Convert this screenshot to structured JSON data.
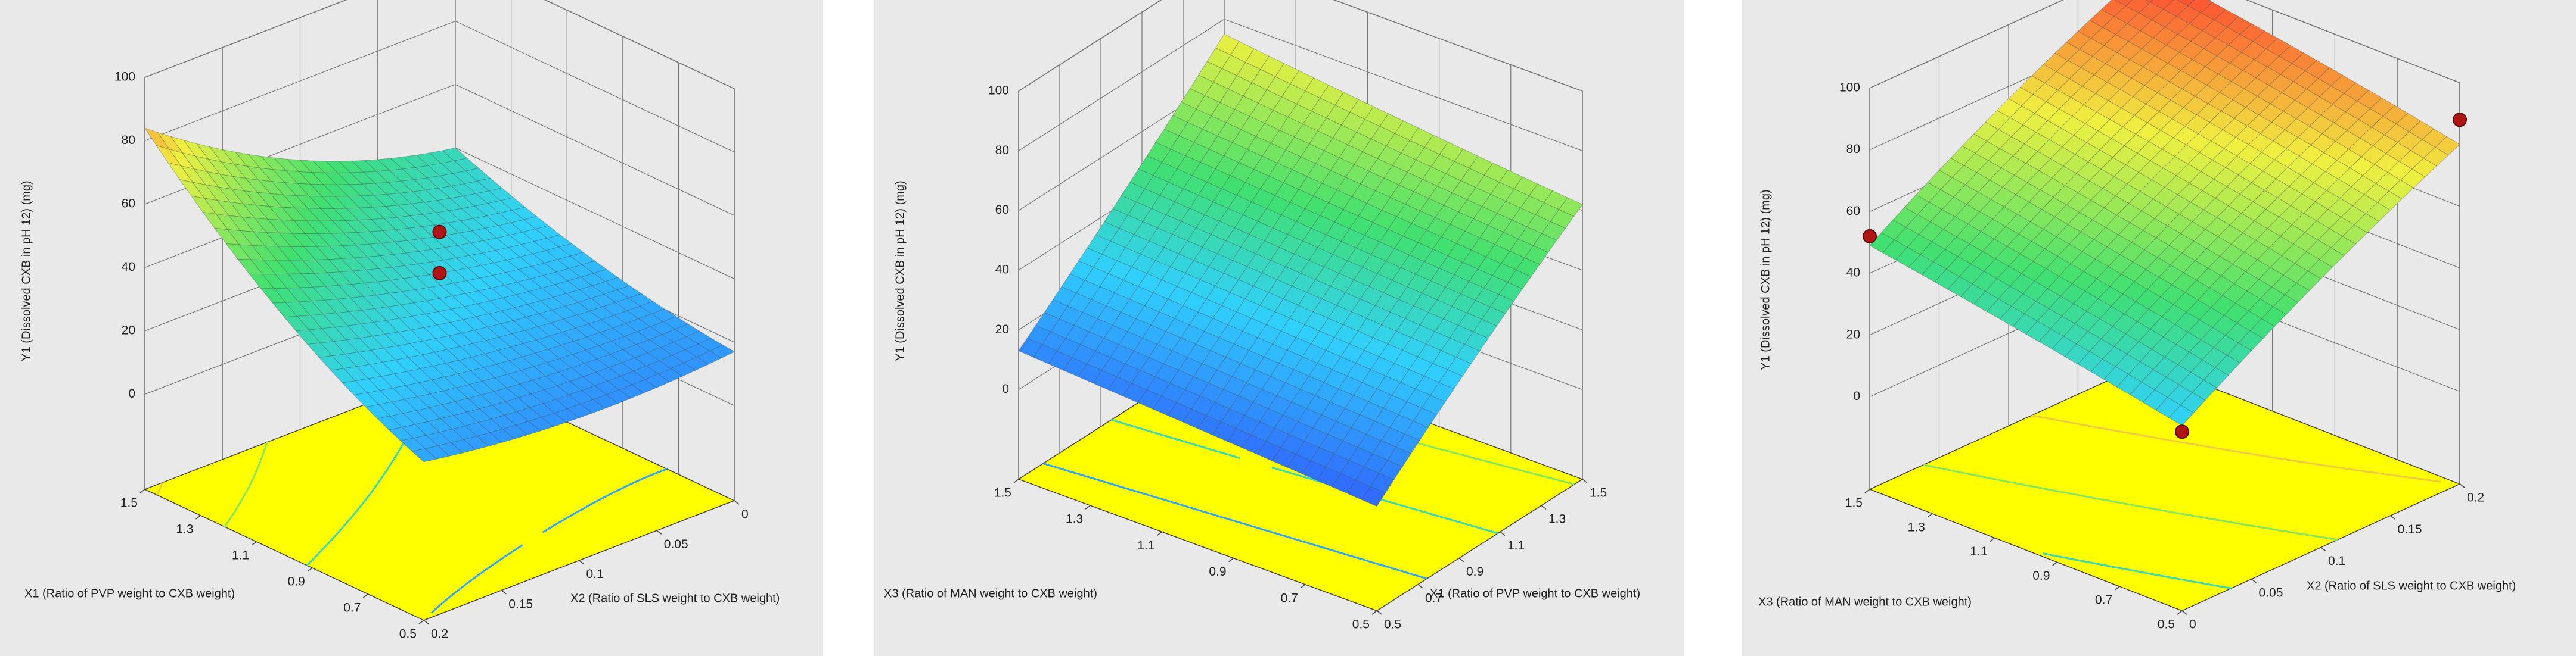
{
  "chart_data": [
    {
      "type": "surface",
      "xlabel": "X1 (Ratio of PVP weight to CXB weight)",
      "xlim": [
        0.5,
        1.5
      ],
      "xticks": [
        0.5,
        0.7,
        0.9,
        1.1,
        1.3,
        1.5
      ],
      "ylabel": "X2 (Ratio of SLS weight to CXB weight)",
      "ylim": [
        0.2,
        0
      ],
      "yticks": [
        0.2,
        0.15,
        0.1,
        0.05,
        0
      ],
      "zlabel": "Y1 (Dissolved CXB in pH 12) (mg)",
      "zlim": [
        -30,
        100
      ],
      "zticks": [
        0,
        20,
        40,
        60,
        80,
        100
      ],
      "surface": {
        "x": [
          0.5,
          1.0,
          1.5
        ],
        "y": [
          0.2,
          0.1,
          0
        ],
        "z": [
          [
            20,
            15,
            17
          ],
          [
            45,
            32,
            25
          ],
          [
            84,
            55,
            40
          ]
        ]
      },
      "points": {
        "x": [
          1.0,
          1.0
        ],
        "y": [
          0.1,
          0.1
        ],
        "z": [
          53,
          40
        ]
      }
    },
    {
      "type": "surface",
      "xlabel": "X3 (Ratio of MAN weight to CXB weight)",
      "xlim": [
        0.5,
        1.5
      ],
      "xticks": [
        0.5,
        0.7,
        0.9,
        1.1,
        1.3,
        1.5
      ],
      "ylabel": "X1 (Ratio of PVP weight to CXB weight)",
      "ylim": [
        0.5,
        1.5
      ],
      "yticks": [
        0.5,
        0.7,
        0.9,
        1.1,
        1.3,
        1.5
      ],
      "zlabel": "Y1 (Dissolved CXB in pH 12) (mg)",
      "zlim": [
        -30,
        100
      ],
      "zticks": [
        0,
        20,
        40,
        60,
        80,
        100
      ],
      "surface": {
        "x": [
          0.5,
          1.0,
          1.5
        ],
        "y": [
          0.5,
          1.0,
          1.5
        ],
        "z": [
          [
            5,
            35,
            62
          ],
          [
            9,
            39,
            68
          ],
          [
            13,
            43,
            75
          ]
        ]
      },
      "points": {
        "x": [],
        "y": [],
        "z": []
      }
    },
    {
      "type": "surface",
      "xlabel": "X3 (Ratio of MAN weight to CXB weight)",
      "xlim": [
        0.5,
        1.5
      ],
      "xticks": [
        0.5,
        0.7,
        0.9,
        1.1,
        1.3,
        1.5
      ],
      "ylabel": "X2 (Ratio of SLS weight to CXB weight)",
      "ylim": [
        0,
        0.2
      ],
      "yticks": [
        0,
        0.05,
        0.1,
        0.15,
        0.2
      ],
      "zlabel": "Y1 (Dissolved CXB in pH 12) (mg)",
      "zlim": [
        -30,
        100
      ],
      "zticks": [
        0,
        20,
        40,
        60,
        80,
        100
      ],
      "surface": {
        "x": [
          0.5,
          1.0,
          1.5
        ],
        "y": [
          0,
          0.1,
          0.2
        ],
        "z": [
          [
            30,
            57,
            80
          ],
          [
            40,
            67,
            90
          ],
          [
            49,
            76,
            98
          ]
        ]
      },
      "points": {
        "x": [
          1.5,
          0.5,
          0.5
        ],
        "y": [
          0,
          0.2,
          0
        ],
        "z": [
          52,
          88,
          28
        ]
      }
    }
  ]
}
